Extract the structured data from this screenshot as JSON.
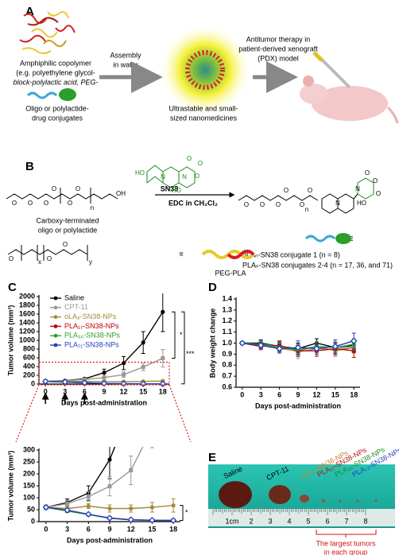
{
  "panel_a": {
    "label": "A",
    "copolymer_lines": [
      "Amphiphilic copolymer",
      "(e.g. polyethylene glycol-",
      "block-polylactic acid, PEG-"
    ],
    "conjugate_lines": [
      "Oligo or polylactide-",
      "drug conjugates"
    ],
    "assembly_lines": [
      "Assembly",
      "in water"
    ],
    "nano_lines": [
      "Ultrastable and small-",
      "sized nanomedicines"
    ],
    "therapy_lines": [
      "Antitumor therapy in",
      "patient-derived xenograft",
      "(PDX) model"
    ]
  },
  "panel_b": {
    "label": "B",
    "drug": "SN38",
    "reagent": "EDC in CH₂Cl₂",
    "left_caption": [
      "Carboxy-terminated",
      "oligo or polylactide"
    ],
    "left_atoms": [
      "O",
      "O",
      "O",
      "O",
      "O",
      "O",
      "OH",
      "n"
    ],
    "drug_atoms": [
      "HO",
      "N",
      "N",
      "O",
      "O",
      "HO",
      "O"
    ],
    "product_atoms": [
      "O",
      "O",
      "O",
      "O",
      "O",
      "O",
      "n",
      "N",
      "N",
      "O",
      "O",
      "HO",
      "O"
    ],
    "equiv": "|||",
    "conjugate_lines": [
      "oLAₙ-SN38 conjugate 1 (n = 8)",
      "PLAₙ-SN38 conjugates 2-4 (n = 17, 36, and 71)"
    ],
    "pegpla_atoms": [
      "O",
      "O",
      "O",
      "x",
      "y"
    ],
    "equals": "≡",
    "pegpla": "PEG-PLA"
  },
  "chart_data": [
    {
      "type": "line",
      "panel_label": "C",
      "y_label": "Tumor volume (mm³)",
      "x_label": "Days post-administration",
      "x": [
        0,
        3,
        6,
        9,
        12,
        15,
        18
      ],
      "xlim": [
        -1,
        19
      ],
      "xticks": [
        0,
        3,
        6,
        9,
        12,
        15,
        18
      ],
      "ylim": [
        0,
        2000
      ],
      "yticks": [
        0,
        200,
        400,
        600,
        800,
        1000,
        1200,
        1400,
        1600,
        1800,
        2000
      ],
      "annotations": [
        "*",
        "***"
      ],
      "series": [
        {
          "name": "Saline",
          "color": "#000000",
          "marker": "circle",
          "values": [
            60,
            80,
            120,
            260,
            480,
            950,
            1650
          ],
          "errors": [
            10,
            15,
            30,
            80,
            150,
            250,
            450
          ]
        },
        {
          "name": "CPT-11",
          "color": "#999999",
          "marker": "square",
          "values": [
            60,
            75,
            105,
            148,
            215,
            390,
            590
          ],
          "errors": [
            10,
            15,
            20,
            40,
            60,
            80,
            200
          ]
        },
        {
          "name": "oLA₈-SN38-NPs",
          "color": "#a48a3a",
          "marker": "circle",
          "values": [
            60,
            55,
            65,
            55,
            55,
            60,
            68
          ],
          "errors": [
            5,
            10,
            10,
            15,
            15,
            20,
            28
          ]
        },
        {
          "name": "PLA₁₇-SN38-NPs",
          "color": "#c00000",
          "marker": "square",
          "values": [
            60,
            45,
            30,
            15,
            8,
            5,
            5
          ],
          "errors": [
            5,
            5,
            5,
            3,
            3,
            2,
            2
          ]
        },
        {
          "name": "PLA₃₆-SN38-NPs",
          "color": "#2e9e2e",
          "marker": "circle",
          "values": [
            60,
            45,
            30,
            14,
            7,
            5,
            4
          ],
          "errors": [
            5,
            5,
            5,
            3,
            3,
            2,
            2
          ]
        },
        {
          "name": "PLA₇₁-SN38-NPs",
          "color": "#1f3fbf",
          "marker": "diamond",
          "values": [
            60,
            48,
            31,
            15,
            8,
            6,
            5
          ],
          "errors": [
            5,
            5,
            5,
            3,
            3,
            2,
            2
          ]
        }
      ],
      "inset": {
        "ylim": [
          0,
          300
        ],
        "yticks": [
          0,
          50,
          100,
          150,
          200,
          250,
          300
        ],
        "annotation": "*"
      }
    },
    {
      "type": "line",
      "panel_label": "D",
      "y_label": "Body weight change",
      "x_label": "Days post-administration",
      "x": [
        0,
        3,
        6,
        9,
        12,
        15,
        18
      ],
      "xlim": [
        -1,
        19
      ],
      "xticks": [
        0,
        3,
        6,
        9,
        12,
        15,
        18
      ],
      "ylim": [
        0.6,
        1.4
      ],
      "yticks": [
        0.6,
        0.7,
        0.8,
        0.9,
        {
          "value": 1,
          "label": "1.0"
        },
        1.1,
        1.2,
        1.3,
        1.4
      ],
      "series": [
        {
          "name": "Saline",
          "color": "#000000",
          "marker": "circle",
          "values": [
            1,
            1,
            0.97,
            0.95,
            1,
            0.96,
            0.98
          ],
          "errors": [
            0.01,
            0.03,
            0.04,
            0.05,
            0.04,
            0.05,
            0.05
          ]
        },
        {
          "name": "CPT-11",
          "color": "#999999",
          "marker": "square",
          "values": [
            1,
            0.99,
            0.97,
            0.92,
            0.95,
            0.94,
            0.97
          ],
          "errors": [
            0.01,
            0.03,
            0.05,
            0.06,
            0.05,
            0.05,
            0.05
          ]
        },
        {
          "name": "oLA₈-SN38-NPs",
          "color": "#a48a3a",
          "marker": "circle",
          "values": [
            1,
            0.98,
            0.95,
            0.93,
            0.97,
            0.93,
            0.96
          ],
          "errors": [
            0.01,
            0.03,
            0.04,
            0.05,
            0.04,
            0.05,
            0.05
          ]
        },
        {
          "name": "PLA₁₇-SN38-NPs",
          "color": "#c00000",
          "marker": "square",
          "values": [
            1,
            0.97,
            0.98,
            0.93,
            0.93,
            0.95,
            0.93
          ],
          "errors": [
            0.01,
            0.03,
            0.04,
            0.05,
            0.05,
            0.05,
            0.06
          ]
        },
        {
          "name": "PLA₃₆-SN38-NPs",
          "color": "#2e9e2e",
          "marker": "circle",
          "values": [
            1,
            0.99,
            0.96,
            0.94,
            0.97,
            0.96,
            0.99
          ],
          "errors": [
            0.01,
            0.03,
            0.04,
            0.05,
            0.04,
            0.05,
            0.05
          ]
        },
        {
          "name": "PLA₇₁-SN38-NPs",
          "color": "#1f3fbf",
          "marker": "diamond",
          "values": [
            1,
            0.98,
            0.95,
            0.96,
            0.95,
            0.97,
            1.02
          ],
          "errors": [
            0.01,
            0.03,
            0.04,
            0.06,
            0.05,
            0.06,
            0.07
          ]
        }
      ]
    }
  ],
  "panel_e": {
    "label": "E",
    "label_colors": [
      "#000000",
      "#000000",
      "#c8822a",
      "#b01010",
      "#1e8a1e",
      "#1f3fbf"
    ],
    "ruler_labels": [
      "1cm",
      "2",
      "3",
      "4",
      "5",
      "6",
      "7",
      "8"
    ],
    "note_lines": [
      "The largest tumors",
      "in each group"
    ]
  }
}
